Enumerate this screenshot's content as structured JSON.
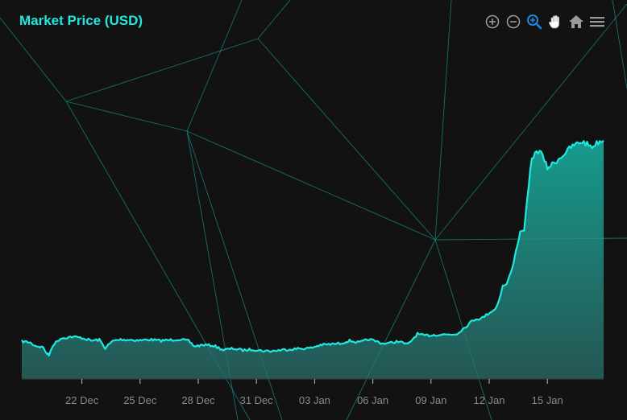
{
  "colors": {
    "background": "#121212",
    "accent": "#1de9e0",
    "title": "#1de9e0",
    "toolbar_icon": "#9a9a9a",
    "toolbar_active": "#1e88e5",
    "mesh_line": "#1a8f8a",
    "axis_line": "#3a3a3a",
    "tick_label": "#8a8a8a"
  },
  "toolbar": {
    "icons": [
      "zoom-in-icon",
      "zoom-out-icon",
      "selection-zoom-icon",
      "pan-icon",
      "reset-home-icon",
      "menu-icon"
    ],
    "active": "selection-zoom-icon"
  },
  "chart_data": {
    "type": "area",
    "title": "Market Price (USD)",
    "xlabel": "",
    "ylabel": "",
    "grid": false,
    "x_ticks": [
      "22 Dec",
      "25 Dec",
      "28 Dec",
      "31 Dec",
      "03 Jan",
      "06 Jan",
      "09 Jan",
      "12 Jan",
      "15 Jan"
    ],
    "x_tick_days": [
      3,
      6,
      9,
      12,
      15,
      18,
      21,
      24,
      27
    ],
    "xlim": [
      -0.1,
      29.9
    ],
    "ylim": [
      0,
      100
    ],
    "series": [
      {
        "x": [
          -0.1,
          0.3,
          0.6,
          1.0,
          1.2,
          1.3,
          1.5,
          1.9,
          2.5,
          3.0,
          3.5,
          3.9,
          4.2,
          4.6,
          5.0,
          5.5,
          6.0,
          6.5,
          7.0,
          7.5,
          8.0,
          8.5,
          8.8,
          9.3,
          9.8,
          10.3,
          10.8,
          11.3,
          11.8,
          12.3,
          12.8,
          13.3,
          13.8,
          14.3,
          14.8,
          15.3,
          15.8,
          16.3,
          16.8,
          17.3,
          17.8,
          18.3,
          18.5,
          18.9,
          19.3,
          19.8,
          20.3,
          20.6,
          20.9,
          21.3,
          21.8,
          22.3,
          22.8,
          23.0,
          23.3,
          23.6,
          24.0,
          24.3,
          24.5,
          24.7,
          24.9,
          25.2,
          25.3,
          25.6,
          25.8,
          26.2,
          26.6,
          27.0,
          27.4,
          27.8,
          28.3,
          28.8,
          29.3,
          29.7,
          29.9
        ],
        "values": [
          13.4,
          13.0,
          11.8,
          11.2,
          9.0,
          8.4,
          12.0,
          14.4,
          15.0,
          14.6,
          13.6,
          13.9,
          11.0,
          13.5,
          14.0,
          13.9,
          13.7,
          14.0,
          13.6,
          13.8,
          14.1,
          13.5,
          11.6,
          12.1,
          11.8,
          10.3,
          10.8,
          10.2,
          10.5,
          10.0,
          9.9,
          10.3,
          10.6,
          10.8,
          11.0,
          12.1,
          12.3,
          12.6,
          13.6,
          12.9,
          14.1,
          13.1,
          12.6,
          12.8,
          13.4,
          12.2,
          16.0,
          15.4,
          15.5,
          15.7,
          15.8,
          15.9,
          18.6,
          20.0,
          21.3,
          21.5,
          23.5,
          24.7,
          27.8,
          33.0,
          33.7,
          39.5,
          43.1,
          52.0,
          53.0,
          78.7,
          81.4,
          75.0,
          77.0,
          79.5,
          82.8,
          84.3,
          82.5,
          84.5,
          84.7
        ]
      }
    ]
  }
}
